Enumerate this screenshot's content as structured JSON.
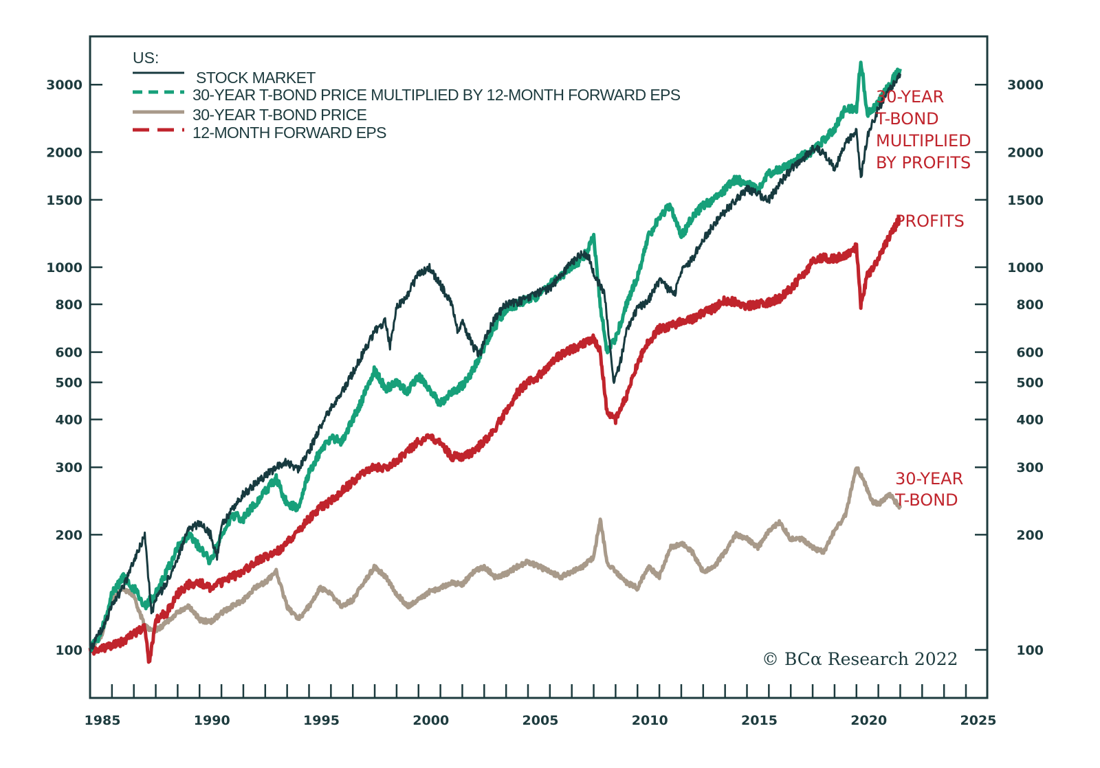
{
  "chart_data": {
    "type": "line",
    "title": "US:",
    "xlabel": "",
    "ylabel": "",
    "yscale": "log",
    "ylim": [
      90,
      3600
    ],
    "xlim": [
      1985,
      2025
    ],
    "grid": false,
    "legend_placement": "top-left",
    "x_ticks": [
      "1985",
      "1990",
      "1995",
      "2000",
      "2005",
      "2010",
      "2015",
      "2020",
      "2025"
    ],
    "y_ticks": [
      "100",
      "200",
      "300",
      "400",
      "500",
      "600",
      "800",
      "1000",
      "1500",
      "2000",
      "3000"
    ],
    "y_tick_values": [
      100,
      200,
      300,
      400,
      500,
      600,
      800,
      1000,
      1500,
      2000,
      3000
    ],
    "series": [
      {
        "name": "STOCK MARKET",
        "color": "#173a3f",
        "style": "solid",
        "x": [
          1985.0,
          1985.5,
          1986.0,
          1986.5,
          1987.0,
          1987.5,
          1987.8,
          1988.0,
          1988.5,
          1989.0,
          1989.5,
          1990.0,
          1990.5,
          1990.8,
          1991.0,
          1991.5,
          1992.0,
          1992.5,
          1993.0,
          1993.5,
          1994.0,
          1994.5,
          1995.0,
          1995.5,
          1996.0,
          1996.5,
          1997.0,
          1997.5,
          1998.0,
          1998.5,
          1998.7,
          1999.0,
          1999.5,
          2000.0,
          2000.5,
          2001.0,
          2001.5,
          2001.8,
          2002.0,
          2002.5,
          2002.8,
          2003.0,
          2003.5,
          2004.0,
          2004.5,
          2005.0,
          2005.5,
          2006.0,
          2006.5,
          2007.0,
          2007.5,
          2007.8,
          2008.0,
          2008.5,
          2008.9,
          2009.2,
          2009.5,
          2010.0,
          2010.5,
          2011.0,
          2011.7,
          2012.0,
          2012.5,
          2013.0,
          2013.5,
          2014.0,
          2014.5,
          2015.0,
          2015.5,
          2016.0,
          2016.5,
          2017.0,
          2017.5,
          2018.0,
          2018.5,
          2018.9,
          2019.0,
          2019.5,
          2020.0,
          2020.2,
          2020.5,
          2021.0,
          2021.5,
          2022.0
        ],
        "values": [
          100,
          112,
          130,
          145,
          170,
          200,
          125,
          135,
          150,
          175,
          205,
          215,
          200,
          175,
          210,
          235,
          255,
          270,
          285,
          300,
          310,
          295,
          330,
          380,
          430,
          470,
          530,
          600,
          680,
          720,
          620,
          780,
          850,
          960,
          1000,
          900,
          800,
          680,
          720,
          620,
          590,
          640,
          740,
          800,
          810,
          830,
          860,
          880,
          950,
          1030,
          1100,
          1050,
          960,
          850,
          500,
          560,
          680,
          780,
          820,
          920,
          850,
          980,
          1050,
          1180,
          1300,
          1400,
          1500,
          1600,
          1550,
          1500,
          1650,
          1800,
          1900,
          2050,
          2000,
          1850,
          1800,
          2100,
          2300,
          1700,
          2200,
          2600,
          2900,
          3200
        ]
      },
      {
        "name": "30-YEAR T-BOND PRICE MULTIPLIED BY 12-MONTH FORWARD EPS",
        "color": "#17a07a",
        "style": "dashed",
        "x": [
          1985.0,
          1985.5,
          1986.0,
          1986.5,
          1987.0,
          1987.5,
          1988.0,
          1988.5,
          1989.0,
          1989.5,
          1990.0,
          1990.5,
          1991.0,
          1991.5,
          1992.0,
          1992.5,
          1993.0,
          1993.5,
          1994.0,
          1994.5,
          1995.0,
          1995.5,
          1996.0,
          1996.5,
          1997.0,
          1997.5,
          1998.0,
          1998.5,
          1999.0,
          1999.5,
          2000.0,
          2000.5,
          2001.0,
          2001.5,
          2002.0,
          2002.5,
          2003.0,
          2003.5,
          2004.0,
          2004.5,
          2005.0,
          2005.5,
          2006.0,
          2006.5,
          2007.0,
          2007.5,
          2008.0,
          2008.3,
          2008.6,
          2009.0,
          2009.5,
          2010.0,
          2010.5,
          2011.0,
          2011.5,
          2012.0,
          2012.5,
          2013.0,
          2013.5,
          2014.0,
          2014.5,
          2015.0,
          2015.5,
          2016.0,
          2016.5,
          2017.0,
          2017.5,
          2018.0,
          2018.5,
          2019.0,
          2019.5,
          2020.0,
          2020.2,
          2020.5,
          2021.0,
          2021.5,
          2022.0
        ],
        "values": [
          100,
          110,
          140,
          155,
          145,
          130,
          140,
          160,
          185,
          200,
          185,
          170,
          200,
          225,
          220,
          240,
          260,
          280,
          240,
          235,
          290,
          330,
          360,
          350,
          400,
          460,
          540,
          480,
          500,
          470,
          520,
          480,
          440,
          470,
          490,
          540,
          620,
          700,
          780,
          800,
          830,
          840,
          900,
          950,
          1000,
          1050,
          1200,
          800,
          600,
          650,
          800,
          950,
          1200,
          1350,
          1450,
          1200,
          1350,
          1450,
          1500,
          1600,
          1700,
          1650,
          1600,
          1750,
          1800,
          1850,
          1950,
          2000,
          2150,
          2300,
          2600,
          2600,
          3500,
          2500,
          2700,
          3000,
          3300
        ]
      },
      {
        "name": "30-YEAR T-BOND PRICE",
        "color": "#a89a8a",
        "style": "solid",
        "x": [
          1985.0,
          1985.5,
          1986.0,
          1986.5,
          1987.0,
          1987.5,
          1988.0,
          1988.5,
          1989.0,
          1989.5,
          1990.0,
          1990.5,
          1991.0,
          1991.5,
          1992.0,
          1992.5,
          1993.0,
          1993.5,
          1994.0,
          1994.5,
          1995.0,
          1995.5,
          1996.0,
          1996.5,
          1997.0,
          1997.5,
          1998.0,
          1998.5,
          1999.0,
          1999.5,
          2000.0,
          2000.5,
          2001.0,
          2001.5,
          2002.0,
          2002.5,
          2003.0,
          2003.5,
          2004.0,
          2004.5,
          2005.0,
          2005.5,
          2006.0,
          2006.5,
          2007.0,
          2007.5,
          2008.0,
          2008.3,
          2008.6,
          2009.0,
          2009.5,
          2010.0,
          2010.5,
          2011.0,
          2011.5,
          2012.0,
          2012.5,
          2013.0,
          2013.5,
          2014.0,
          2014.5,
          2015.0,
          2015.5,
          2016.0,
          2016.5,
          2017.0,
          2017.5,
          2018.0,
          2018.5,
          2019.0,
          2019.5,
          2020.0,
          2020.3,
          2020.7,
          2021.0,
          2021.5,
          2022.0
        ],
        "values": [
          100,
          108,
          135,
          145,
          138,
          115,
          112,
          118,
          125,
          130,
          120,
          118,
          125,
          130,
          135,
          145,
          150,
          160,
          130,
          120,
          130,
          145,
          140,
          130,
          135,
          150,
          165,
          155,
          140,
          130,
          135,
          142,
          145,
          150,
          148,
          160,
          165,
          155,
          158,
          165,
          170,
          165,
          160,
          155,
          160,
          165,
          175,
          220,
          170,
          160,
          150,
          145,
          165,
          155,
          185,
          190,
          180,
          160,
          165,
          180,
          200,
          195,
          185,
          205,
          215,
          195,
          195,
          185,
          180,
          205,
          225,
          300,
          280,
          245,
          240,
          255,
          235
        ]
      },
      {
        "name": "12-MONTH FORWARD EPS",
        "color": "#c0242c",
        "style": "dashed",
        "x": [
          1985.0,
          1985.5,
          1986.0,
          1986.5,
          1987.0,
          1987.5,
          1987.7,
          1988.0,
          1988.5,
          1989.0,
          1989.5,
          1990.0,
          1990.5,
          1991.0,
          1991.5,
          1992.0,
          1992.5,
          1993.0,
          1993.5,
          1994.0,
          1994.5,
          1995.0,
          1995.5,
          1996.0,
          1996.5,
          1997.0,
          1997.5,
          1998.0,
          1998.5,
          1999.0,
          1999.5,
          2000.0,
          2000.5,
          2001.0,
          2001.5,
          2002.0,
          2002.5,
          2003.0,
          2003.5,
          2004.0,
          2004.5,
          2005.0,
          2005.5,
          2006.0,
          2006.5,
          2007.0,
          2007.5,
          2008.0,
          2008.3,
          2008.6,
          2009.0,
          2009.5,
          2010.0,
          2010.5,
          2011.0,
          2011.5,
          2012.0,
          2012.5,
          2013.0,
          2013.5,
          2014.0,
          2014.5,
          2015.0,
          2015.5,
          2016.0,
          2016.5,
          2017.0,
          2017.5,
          2018.0,
          2018.5,
          2019.0,
          2019.5,
          2020.0,
          2020.2,
          2020.5,
          2021.0,
          2021.5,
          2022.0
        ],
        "values": [
          100,
          100,
          103,
          105,
          110,
          115,
          92,
          120,
          125,
          140,
          148,
          150,
          145,
          150,
          155,
          160,
          170,
          175,
          180,
          190,
          205,
          220,
          235,
          245,
          260,
          275,
          290,
          300,
          300,
          310,
          330,
          350,
          360,
          345,
          320,
          320,
          330,
          350,
          380,
          420,
          470,
          500,
          520,
          560,
          590,
          610,
          630,
          650,
          600,
          420,
          400,
          460,
          560,
          640,
          690,
          700,
          720,
          730,
          760,
          780,
          820,
          810,
          790,
          800,
          810,
          830,
          880,
          950,
          1030,
          1060,
          1050,
          1080,
          1130,
          800,
          950,
          1050,
          1200,
          1350
        ]
      }
    ],
    "annotations": [
      {
        "lines": [
          "30-YEAR",
          "T-BOND",
          "MULTIPLIED",
          "BY PROFITS"
        ],
        "color": "#c0242c"
      },
      {
        "lines": [
          "PROFITS"
        ],
        "color": "#c0242c"
      },
      {
        "lines": [
          "30-YEAR",
          "T-BOND"
        ],
        "color": "#c0242c"
      }
    ],
    "source": "© BCA Research 2022"
  },
  "legend": {
    "title": "US:",
    "items": [
      {
        "label": "STOCK MARKET",
        "color": "#173a3f",
        "style": "solid"
      },
      {
        "label": "30-YEAR T-BOND PRICE MULTIPLIED BY 12-MONTH FORWARD EPS",
        "color": "#17a07a",
        "style": "dashed"
      },
      {
        "label": "30-YEAR T-BOND PRICE",
        "color": "#a89a8a",
        "style": "solid"
      },
      {
        "label": "12-MONTH FORWARD EPS",
        "color": "#c0242c",
        "style": "dashed"
      }
    ]
  },
  "copyright": "© BCα Research 2022"
}
